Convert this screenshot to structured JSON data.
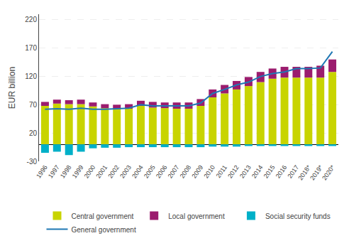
{
  "chart_data": {
    "type": "bar",
    "stacked": true,
    "ylabel": "EUR billion",
    "categories": [
      "1996",
      "1997",
      "1998",
      "1999",
      "2000",
      "2001",
      "2002",
      "2003",
      "2004",
      "2005",
      "2006",
      "2007",
      "2008",
      "2009",
      "2010",
      "2011",
      "2012",
      "2013",
      "2014",
      "2015",
      "2016",
      "2017",
      "2018*",
      "2019*",
      "2020*"
    ],
    "series": [
      {
        "name": "Central government",
        "type": "bar",
        "color": "#c8d400",
        "values": [
          68,
          72,
          71,
          71,
          67,
          64,
          63,
          63,
          68,
          65,
          64,
          63,
          63,
          68,
          83,
          90,
          97,
          103,
          110,
          116,
          118,
          118,
          118,
          118,
          128
        ]
      },
      {
        "name": "Local government",
        "type": "bar",
        "color": "#9b1c6e",
        "values": [
          7,
          7,
          7,
          8,
          7,
          7,
          7,
          8,
          9,
          10,
          10,
          11,
          11,
          12,
          14,
          15,
          15,
          16,
          18,
          18,
          19,
          19,
          19,
          21,
          22
        ]
      },
      {
        "name": "Social security funds",
        "type": "bar",
        "color": "#00b0c8",
        "values": [
          -15,
          -13,
          -19,
          -13,
          -7,
          -6,
          -6,
          -5,
          -5,
          -5,
          -5,
          -5,
          -5,
          -5,
          -4,
          -4,
          -4,
          -3,
          -3,
          -3,
          -3,
          -3,
          -3,
          -3,
          -3
        ]
      },
      {
        "name": "General government",
        "type": "line",
        "color": "#1f78b4",
        "values": [
          62,
          63,
          62,
          64,
          62,
          62,
          63,
          64,
          70,
          68,
          68,
          68,
          68,
          73,
          90,
          97,
          105,
          110,
          120,
          125,
          128,
          134,
          134,
          135,
          164
        ]
      }
    ],
    "ylim": [
      -30,
      230
    ],
    "yticks": [
      -30,
      20,
      70,
      120,
      170,
      220
    ],
    "grid": true,
    "legend": "bottom"
  }
}
